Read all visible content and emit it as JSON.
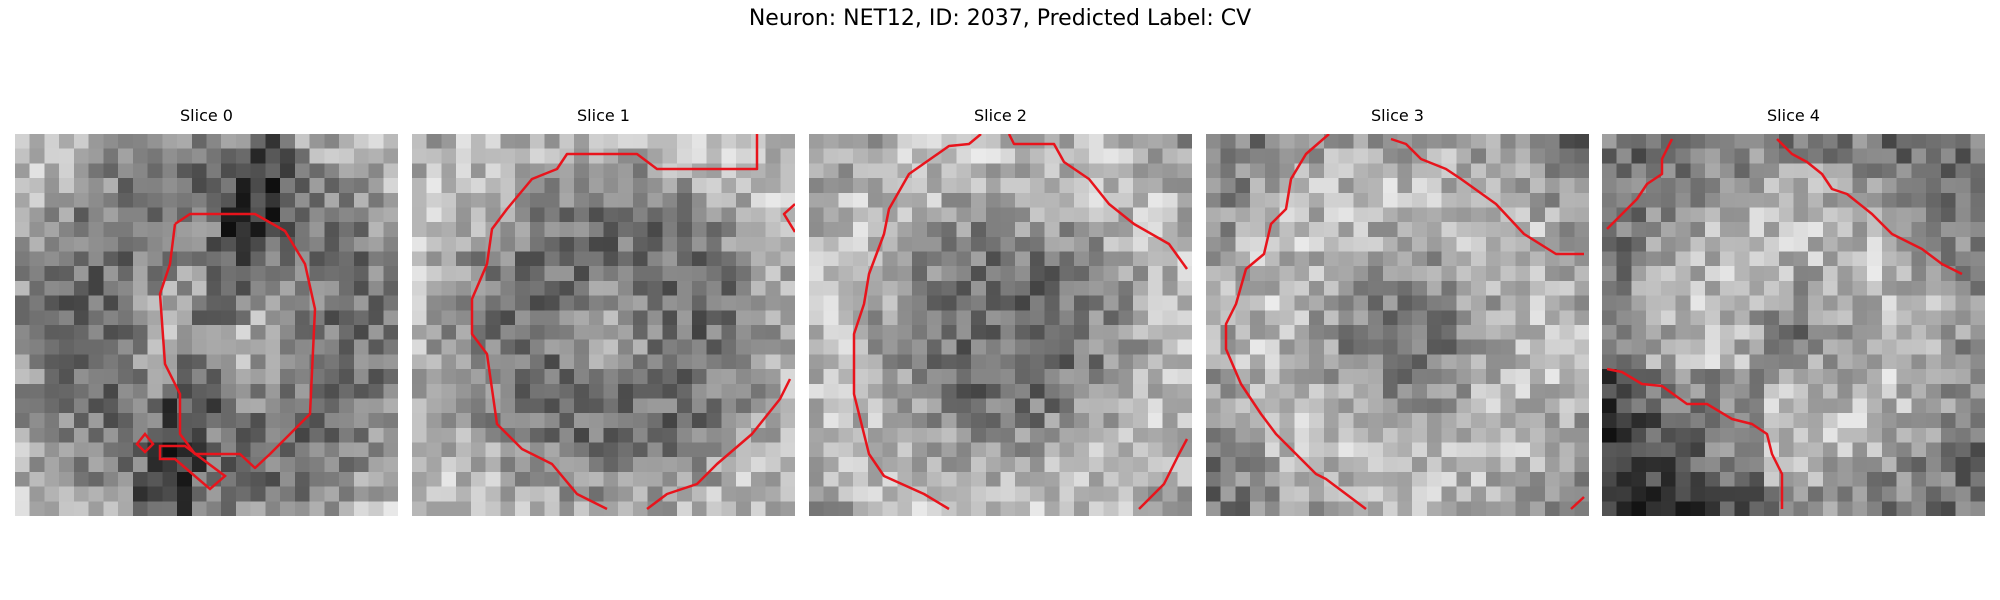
{
  "figure": {
    "title": "Neuron: NET12, ID: 2037, Predicted Label: CV"
  },
  "contour_color": "#e8141c",
  "colormap": "gray",
  "panels": [
    {
      "title": "Slice 0"
    },
    {
      "title": "Slice 1"
    },
    {
      "title": "Slice 2"
    },
    {
      "title": "Slice 3"
    },
    {
      "title": "Slice 4"
    }
  ]
}
